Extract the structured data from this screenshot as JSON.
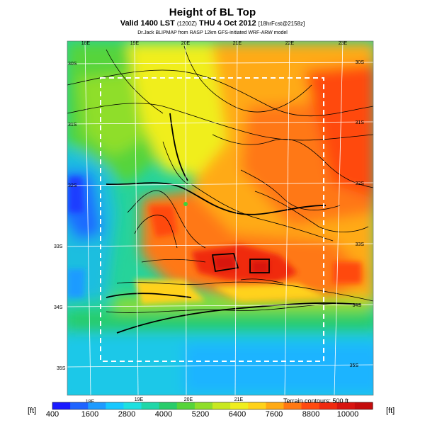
{
  "title": "Height of BL Top",
  "subtitle_main": "Valid 1400 LST",
  "subtitle_small": "(1200Z)",
  "subtitle_date": "THU 4 Oct 2012",
  "subtitle_run": "[18hrFcst@2158z]",
  "subtitle2": "Dr.Jack BLIPMAP from RASP 12km GFS-initiated WRF-ARW model",
  "top_lon_labels": [
    "18E",
    "19E",
    "20E",
    "21E",
    "22E",
    "23E"
  ],
  "bottom_lon_labels": [
    "18E",
    "19E",
    "20E",
    "21E"
  ],
  "left_lat_labels": [
    "30S",
    "31S",
    "32S",
    "33S",
    "34S",
    "35S"
  ],
  "right_lat_labels": [
    "30S",
    "31S",
    "32S",
    "33S",
    "34S",
    "35S"
  ],
  "unit_left": "[ft]",
  "unit_right": "[ft]",
  "terrain_note": "Terrain contours: 500 ft",
  "legend": {
    "tick_labels": [
      "400",
      "1600",
      "2800",
      "4000",
      "5200",
      "6400",
      "7600",
      "8800",
      "10000"
    ],
    "colors": [
      "#1a1aff",
      "#1f64ff",
      "#1e9bff",
      "#17c8ff",
      "#1de0e0",
      "#20d7a8",
      "#28cc6a",
      "#56d43a",
      "#8fde2a",
      "#c8e820",
      "#f0ee1e",
      "#ffd21a",
      "#ffaa14",
      "#ff7812",
      "#ff4a10",
      "#f02a10",
      "#d81410",
      "#c40c0c"
    ]
  },
  "colors": {
    "background": "#ffffff",
    "domain_box": "#ffffff",
    "grid": "#ffffff",
    "contour": "#000000"
  }
}
